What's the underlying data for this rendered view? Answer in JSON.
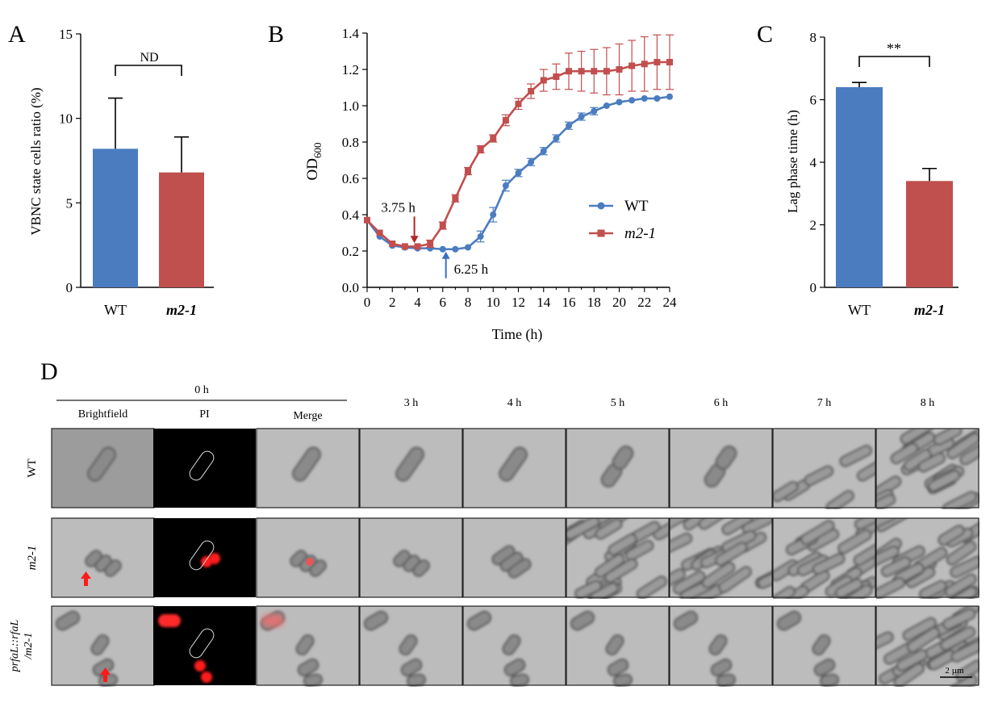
{
  "panels": {
    "A": {
      "letter": "A"
    },
    "B": {
      "letter": "B"
    },
    "C": {
      "letter": "C"
    },
    "D": {
      "letter": "D"
    }
  },
  "colors": {
    "wt": "#4a7cbf",
    "m21": "#c24e4e",
    "m21_bar": "#c0504d"
  },
  "chart_data": [
    {
      "id": "A",
      "type": "bar",
      "categories": [
        "WT",
        "m2-1"
      ],
      "values": [
        8.2,
        6.8
      ],
      "errors": [
        3.0,
        2.1
      ],
      "ylabel": "VBNC state cells ratio (%)",
      "ylim": [
        0,
        15
      ],
      "yticks": [
        0,
        5,
        10,
        15
      ],
      "annotation": "ND"
    },
    {
      "id": "B",
      "type": "line",
      "xlabel": "Time (h)",
      "ylabel": "OD",
      "ylabel_sub": "600",
      "xlim": [
        0,
        24
      ],
      "ylim": [
        0,
        1.4
      ],
      "xticks": [
        0,
        2,
        4,
        6,
        8,
        10,
        12,
        14,
        16,
        18,
        20,
        22,
        24
      ],
      "yticks": [
        "0.0",
        "0.2",
        "0.4",
        "0.6",
        "0.8",
        "1.0",
        "1.2",
        "1.4"
      ],
      "legend_position": "right",
      "annotations": [
        {
          "text": "3.75 h",
          "x": 3.75,
          "y": 0.23
        },
        {
          "text": "6.25 h",
          "x": 6.25,
          "y": 0.21
        }
      ],
      "series": [
        {
          "name": "WT",
          "x": [
            0,
            1,
            2,
            3,
            4,
            5,
            6,
            7,
            8,
            9,
            10,
            11,
            12,
            13,
            14,
            15,
            16,
            17,
            18,
            19,
            20,
            21,
            22,
            23,
            24
          ],
          "y": [
            0.37,
            0.28,
            0.23,
            0.22,
            0.215,
            0.215,
            0.21,
            0.21,
            0.22,
            0.28,
            0.4,
            0.56,
            0.63,
            0.69,
            0.75,
            0.82,
            0.89,
            0.94,
            0.97,
            1.0,
            1.02,
            1.03,
            1.04,
            1.04,
            1.05
          ],
          "err": [
            0.01,
            0.01,
            0.01,
            0.01,
            0.01,
            0.01,
            0.01,
            0.01,
            0.01,
            0.03,
            0.04,
            0.03,
            0.02,
            0.02,
            0.02,
            0.02,
            0.02,
            0.02,
            0.02,
            0.01,
            0.01,
            0.01,
            0.01,
            0.01,
            0.01
          ]
        },
        {
          "name": "m2-1",
          "x": [
            0,
            1,
            2,
            3,
            4,
            5,
            6,
            7,
            8,
            9,
            10,
            11,
            12,
            13,
            14,
            15,
            16,
            17,
            18,
            19,
            20,
            21,
            22,
            23,
            24
          ],
          "y": [
            0.37,
            0.3,
            0.24,
            0.225,
            0.225,
            0.24,
            0.34,
            0.49,
            0.64,
            0.76,
            0.82,
            0.92,
            1.01,
            1.08,
            1.14,
            1.16,
            1.19,
            1.19,
            1.19,
            1.19,
            1.2,
            1.22,
            1.23,
            1.24,
            1.24
          ],
          "err": [
            0.01,
            0.01,
            0.01,
            0.01,
            0.01,
            0.02,
            0.02,
            0.02,
            0.02,
            0.02,
            0.02,
            0.03,
            0.03,
            0.04,
            0.06,
            0.07,
            0.1,
            0.11,
            0.12,
            0.13,
            0.14,
            0.14,
            0.15,
            0.15,
            0.15
          ]
        }
      ]
    },
    {
      "id": "C",
      "type": "bar",
      "categories": [
        "WT",
        "m2-1"
      ],
      "values": [
        6.4,
        3.4
      ],
      "errors": [
        0.15,
        0.4
      ],
      "ylabel": "Lag phase time (h)",
      "ylim": [
        0,
        8
      ],
      "yticks": [
        0,
        2,
        4,
        6,
        8
      ],
      "annotation": "**"
    }
  ],
  "micrograph": {
    "group_label": "0 h",
    "columns": [
      "Brightfield",
      "PI",
      "Merge",
      "3 h",
      "4 h",
      "5 h",
      "6 h",
      "7 h",
      "8 h"
    ],
    "rows": [
      {
        "label": "WT",
        "italic": false
      },
      {
        "label": "m2-1",
        "italic": true
      },
      {
        "label_line1": "prfaL::rfaL",
        "label_line2": "/m2-1",
        "italic": true
      }
    ],
    "scale_bar": "2 µm"
  }
}
